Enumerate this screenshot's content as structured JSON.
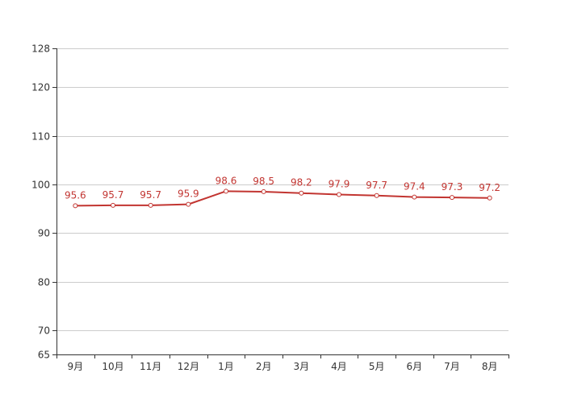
{
  "chart_data": {
    "type": "line",
    "categories": [
      "9月",
      "10月",
      "11月",
      "12月",
      "1月",
      "2月",
      "3月",
      "4月",
      "5月",
      "6月",
      "7月",
      "8月"
    ],
    "series": [
      {
        "values": [
          95.6,
          95.7,
          95.7,
          95.9,
          98.6,
          98.5,
          98.2,
          97.9,
          97.7,
          97.4,
          97.3,
          97.2
        ],
        "color": "#c23531"
      }
    ],
    "data_labels": [
      "95.6",
      "95.7",
      "95.7",
      "95.9",
      "98.6",
      "98.5",
      "98.2",
      "97.9",
      "97.7",
      "97.4",
      "97.3",
      "97.2"
    ],
    "y_ticks": [
      65,
      70,
      80,
      90,
      100,
      110,
      120,
      128
    ],
    "y_tick_labels": [
      "65",
      "70",
      "80",
      "90",
      "100",
      "110",
      "120",
      "128"
    ],
    "ylim": [
      65,
      128
    ],
    "grid": true,
    "legend": "none",
    "colors": {
      "line": "#c23531",
      "grid": "#cccccc",
      "axis": "#333333",
      "text": "#333333"
    }
  }
}
